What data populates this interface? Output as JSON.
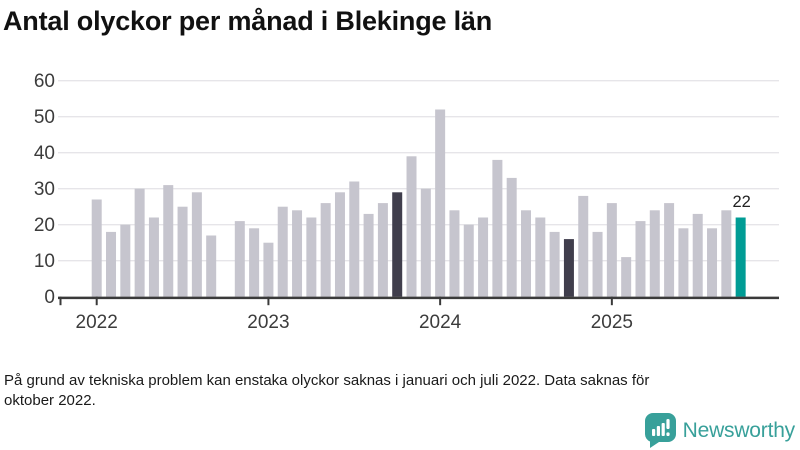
{
  "title": "Antal olyckor per månad i Blekinge län",
  "footnote": "På grund av tekniska problem kan enstaka olyckor saknas i januari och juli 2022. Data saknas för\noktober 2022.",
  "logo": {
    "text": "Newsworthy"
  },
  "colors": {
    "bar_default": "#c6c5ce",
    "bar_highlight": "#403e4c",
    "bar_current": "#009c95",
    "gridline": "#e6e5e9",
    "axis": "#3a3a3a",
    "axis_text": "#3c3c3c",
    "value_label": "#222222",
    "logo_teal": "#38a09a",
    "title_text": "#111111"
  },
  "chart_data": {
    "type": "bar",
    "title": "Antal olyckor per månad i Blekinge län",
    "xlabel": "",
    "ylabel": "",
    "ylim": [
      0,
      60
    ],
    "grid": true,
    "months": [
      "2022-01",
      "2022-02",
      "2022-03",
      "2022-04",
      "2022-05",
      "2022-06",
      "2022-07",
      "2022-08",
      "2022-09",
      "2022-10",
      "2022-11",
      "2022-12",
      "2023-01",
      "2023-02",
      "2023-03",
      "2023-04",
      "2023-05",
      "2023-06",
      "2023-07",
      "2023-08",
      "2023-09",
      "2023-10",
      "2023-11",
      "2023-12",
      "2024-01",
      "2024-02",
      "2024-03",
      "2024-04",
      "2024-05",
      "2024-06",
      "2024-07",
      "2024-08",
      "2024-09",
      "2024-10",
      "2024-11",
      "2024-12",
      "2025-01",
      "2025-02",
      "2025-03",
      "2025-04",
      "2025-05",
      "2025-06",
      "2025-07",
      "2025-08",
      "2025-09",
      "2025-10"
    ],
    "values": [
      27,
      18,
      20,
      30,
      22,
      31,
      25,
      29,
      17,
      null,
      21,
      19,
      15,
      25,
      24,
      22,
      26,
      29,
      32,
      23,
      26,
      29,
      39,
      30,
      52,
      24,
      20,
      22,
      38,
      33,
      24,
      22,
      18,
      16,
      28,
      18,
      26,
      11,
      21,
      24,
      26,
      19,
      23,
      19,
      24,
      22
    ],
    "highlight_months": [
      "2023-10",
      "2024-10"
    ],
    "current_month": "2025-10",
    "current_value_label": "22",
    "yticks": [
      0,
      10,
      20,
      30,
      40,
      50,
      60
    ],
    "xticks": [
      {
        "label": "2022",
        "month": "2022-01"
      },
      {
        "label": "2023",
        "month": "2023-01"
      },
      {
        "label": "2024",
        "month": "2024-01"
      },
      {
        "label": "2025",
        "month": "2025-01"
      }
    ],
    "legend": false
  }
}
